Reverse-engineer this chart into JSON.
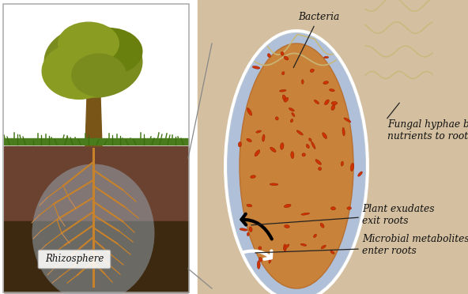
{
  "bg_color": "#ffffff",
  "fig_width": 5.92,
  "fig_height": 3.72,
  "dpi": 100,
  "labels": {
    "bacteria": "Bacteria",
    "fungal": "Fungal hyphae bring\nnutrients to roots",
    "plant_exudates": "Plant exudates\nexit roots",
    "microbial": "Microbial metabolites\nenter roots",
    "rhizosphere": "Rhizosphere"
  },
  "tree_color": "#7a8c1e",
  "grass_color": "#4a7c1e",
  "soil_dark": "#3d2810",
  "soil_mid": "#6b4230",
  "root_color": "#c8822a",
  "rhizosphere_color": "#9aabb8",
  "bacteria_color": "#cc3300",
  "hyphae_color": "#c8b878",
  "tan_bg": "#d4b896",
  "label_color": "#111111",
  "root_outer_color": "#b0c0d8",
  "root_inner_color": "#c8823a"
}
